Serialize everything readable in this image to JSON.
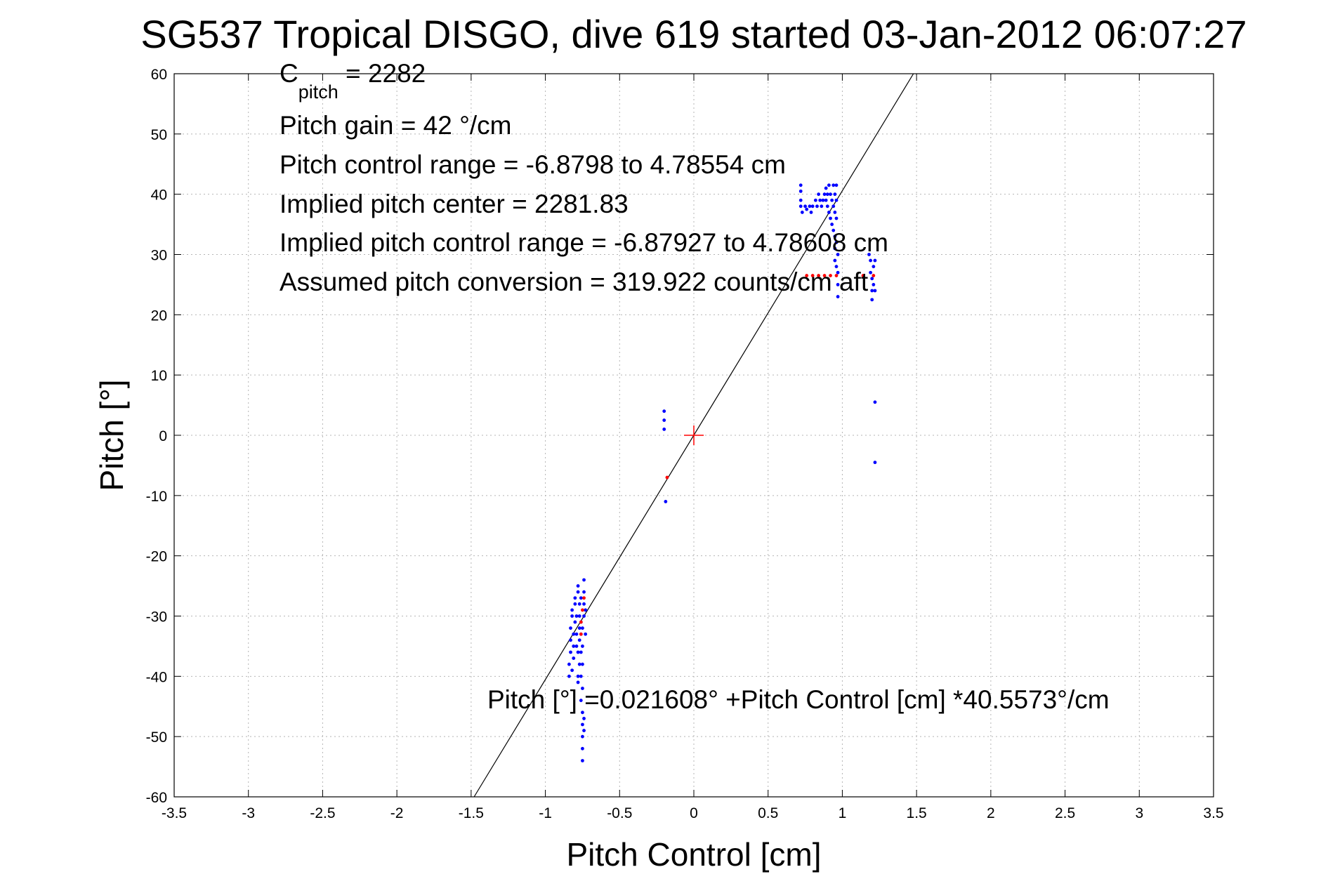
{
  "chart_data": {
    "type": "scatter",
    "title": "SG537 Tropical DISGO, dive 619 started 03-Jan-2012 06:07:27",
    "xlabel": "Pitch Control [cm]",
    "ylabel": "Pitch [°]",
    "xlim": [
      -3.5,
      3.5
    ],
    "ylim": [
      -60,
      60
    ],
    "xticks": [
      -3.5,
      -3,
      -2.5,
      -2,
      -1.5,
      -1,
      -0.5,
      0,
      0.5,
      1,
      1.5,
      2,
      2.5,
      3,
      3.5
    ],
    "yticks": [
      -60,
      -50,
      -40,
      -30,
      -20,
      -10,
      0,
      10,
      20,
      30,
      40,
      50,
      60
    ],
    "xtick_labels": [
      "-3.5",
      "-3",
      "-2.5",
      "-2",
      "-1.5",
      "-1",
      "-0.5",
      "0",
      "0.5",
      "1",
      "1.5",
      "2",
      "2.5",
      "3",
      "3.5"
    ],
    "ytick_labels": [
      "-60",
      "-50",
      "-40",
      "-30",
      "-20",
      "-10",
      "0",
      "10",
      "20",
      "30",
      "40",
      "50",
      "60"
    ],
    "grid": true,
    "annotations": {
      "c_pitch_main": "C",
      "c_pitch_sub": "pitch",
      "c_pitch_value": " = 2282",
      "pitch_gain": "Pitch gain = 42 °/cm",
      "pitch_control_range": "Pitch control range = -6.8798 to 4.78554 cm",
      "implied_pitch_center": "Implied pitch center = 2281.83",
      "implied_pitch_control_range": "Implied pitch control range = -6.87927 to 4.78608 cm",
      "assumed_pitch_conversion": "Assumed pitch conversion = 319.922 counts/cm aft",
      "fit_equation": "Pitch [°] =0.021608° +Pitch Control [cm] *40.5573°/cm"
    },
    "fit_line": {
      "intercept": 0.021608,
      "slope": 40.5573,
      "color": "#000000"
    },
    "center_marker": {
      "x": 0,
      "y": 0,
      "color": "#ff0000",
      "marker": "plus"
    },
    "series": [
      {
        "color": "#0000ff",
        "marker": "dot",
        "points": [
          [
            -0.84,
            -40
          ],
          [
            -0.84,
            -38
          ],
          [
            -0.83,
            -36
          ],
          [
            -0.83,
            -34
          ],
          [
            -0.83,
            -32
          ],
          [
            -0.82,
            -30
          ],
          [
            -0.82,
            -29
          ],
          [
            -0.82,
            -39
          ],
          [
            -0.81,
            -37
          ],
          [
            -0.81,
            -35
          ],
          [
            -0.81,
            -33
          ],
          [
            -0.8,
            -31
          ],
          [
            -0.8,
            -28
          ],
          [
            -0.8,
            -27
          ],
          [
            -0.79,
            -35
          ],
          [
            -0.79,
            -33
          ],
          [
            -0.79,
            -30
          ],
          [
            -0.78,
            -26
          ],
          [
            -0.78,
            -25
          ],
          [
            -0.78,
            -36
          ],
          [
            -0.78,
            -40
          ],
          [
            -0.78,
            -41
          ],
          [
            -0.77,
            -38
          ],
          [
            -0.77,
            -34
          ],
          [
            -0.77,
            -32
          ],
          [
            -0.77,
            -30
          ],
          [
            -0.77,
            -28
          ],
          [
            -0.76,
            -27
          ],
          [
            -0.76,
            -31
          ],
          [
            -0.76,
            -33
          ],
          [
            -0.76,
            -36
          ],
          [
            -0.76,
            -40
          ],
          [
            -0.76,
            -44
          ],
          [
            -0.75,
            -46
          ],
          [
            -0.75,
            -48
          ],
          [
            -0.75,
            -50
          ],
          [
            -0.75,
            -52
          ],
          [
            -0.75,
            -54
          ],
          [
            -0.75,
            -42
          ],
          [
            -0.75,
            -38
          ],
          [
            -0.75,
            -35
          ],
          [
            -0.75,
            -32
          ],
          [
            -0.74,
            -30
          ],
          [
            -0.74,
            -28
          ],
          [
            -0.74,
            -26
          ],
          [
            -0.74,
            -24
          ],
          [
            -0.74,
            -47
          ],
          [
            -0.74,
            -49
          ],
          [
            -0.73,
            -29
          ],
          [
            -0.73,
            -33
          ],
          [
            -0.2,
            4.0
          ],
          [
            -0.2,
            2.5
          ],
          [
            -0.2,
            1.0
          ],
          [
            -0.19,
            -11
          ],
          [
            0.72,
            41.5
          ],
          [
            0.72,
            40.5
          ],
          [
            0.72,
            39
          ],
          [
            0.72,
            38
          ],
          [
            0.73,
            37
          ],
          [
            0.75,
            38
          ],
          [
            0.76,
            37.5
          ],
          [
            0.78,
            38
          ],
          [
            0.79,
            37
          ],
          [
            0.8,
            38
          ],
          [
            0.82,
            39
          ],
          [
            0.83,
            38
          ],
          [
            0.84,
            40
          ],
          [
            0.85,
            39
          ],
          [
            0.86,
            38
          ],
          [
            0.87,
            39
          ],
          [
            0.88,
            40
          ],
          [
            0.89,
            41
          ],
          [
            0.89,
            39
          ],
          [
            0.9,
            40
          ],
          [
            0.9,
            38
          ],
          [
            0.91,
            41.5
          ],
          [
            0.91,
            37
          ],
          [
            0.92,
            40
          ],
          [
            0.92,
            36
          ],
          [
            0.93,
            39
          ],
          [
            0.93,
            35
          ],
          [
            0.94,
            41.5
          ],
          [
            0.94,
            38
          ],
          [
            0.94,
            34
          ],
          [
            0.95,
            40
          ],
          [
            0.95,
            37
          ],
          [
            0.95,
            33
          ],
          [
            0.95,
            31
          ],
          [
            0.95,
            29
          ],
          [
            0.96,
            41.5
          ],
          [
            0.96,
            39
          ],
          [
            0.96,
            36
          ],
          [
            0.96,
            32
          ],
          [
            0.96,
            28
          ],
          [
            0.97,
            30
          ],
          [
            0.97,
            27
          ],
          [
            0.97,
            25
          ],
          [
            0.97,
            23
          ],
          [
            1.18,
            30
          ],
          [
            1.19,
            29
          ],
          [
            1.19,
            27
          ],
          [
            1.2,
            26
          ],
          [
            1.2,
            24
          ],
          [
            1.2,
            22.5
          ],
          [
            1.21,
            28
          ],
          [
            1.21,
            25
          ],
          [
            1.22,
            29
          ],
          [
            1.22,
            24
          ],
          [
            1.22,
            5.5
          ],
          [
            1.22,
            -4.5
          ]
        ]
      },
      {
        "color": "#ff0000",
        "marker": "dot",
        "points": [
          [
            -0.74,
            -27
          ],
          [
            -0.75,
            -29
          ],
          [
            -0.76,
            -31
          ],
          [
            -0.76,
            -33
          ],
          [
            -0.18,
            -7
          ],
          [
            0.76,
            26.5
          ],
          [
            0.8,
            26.5
          ],
          [
            0.84,
            26.5
          ],
          [
            0.88,
            26.5
          ],
          [
            0.92,
            26.5
          ],
          [
            0.96,
            26.5
          ],
          [
            1.14,
            26.5
          ],
          [
            1.21,
            26.5
          ]
        ]
      }
    ]
  }
}
